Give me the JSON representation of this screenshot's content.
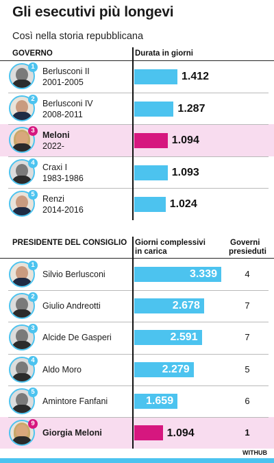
{
  "title": "Gli esecutivi più longevi",
  "subtitle": "Così nella storia repubblicana",
  "credit": "WITHUB",
  "chart_data": [
    {
      "type": "bar",
      "title": "Gli esecutivi più longevi",
      "subtitle": "Così nella storia repubblicana",
      "category_header": "GOVERNO",
      "value_header": "Durata in giorni",
      "categories": [
        "Berlusconi II",
        "Berlusconi IV",
        "Meloni",
        "Craxi I",
        "Renzi"
      ],
      "periods": [
        "2001-2005",
        "2008-2011",
        "2022-",
        "1983-1986",
        "2014-2016"
      ],
      "ranks": [
        "1",
        "2",
        "3",
        "4",
        "5"
      ],
      "values": [
        1412,
        1287,
        1094,
        1093,
        1024
      ],
      "labels": [
        "1.412",
        "1.287",
        "1.094",
        "1.093",
        "1.024"
      ],
      "highlight_index": 2,
      "colors": {
        "bar": "#4cc3ef",
        "highlight": "#d6177f",
        "highlight_row": "#f8dcef"
      }
    },
    {
      "type": "bar",
      "category_header": "PRESIDENTE DEL CONSIGLIO",
      "value_header_line1": "Giorni complessivi",
      "value_header_line2": "in carica",
      "count_header_line1": "Governi",
      "count_header_line2": "presieduti",
      "categories": [
        "Silvio Berlusconi",
        "Giulio Andreotti",
        "Alcide De Gasperi",
        "Aldo Moro",
        "Amintore Fanfani",
        "Giorgia Meloni"
      ],
      "ranks": [
        "1",
        "2",
        "3",
        "4",
        "5",
        "9"
      ],
      "values": [
        3339,
        2678,
        2591,
        2279,
        1659,
        1094
      ],
      "labels": [
        "3.339",
        "2.678",
        "2.591",
        "2.279",
        "1.659",
        "1.094"
      ],
      "governments": [
        "4",
        "7",
        "7",
        "5",
        "6",
        "1"
      ],
      "highlight_index": 5,
      "colors": {
        "bar": "#4cc3ef",
        "highlight": "#d6177f",
        "highlight_row": "#f8dcef"
      }
    }
  ]
}
